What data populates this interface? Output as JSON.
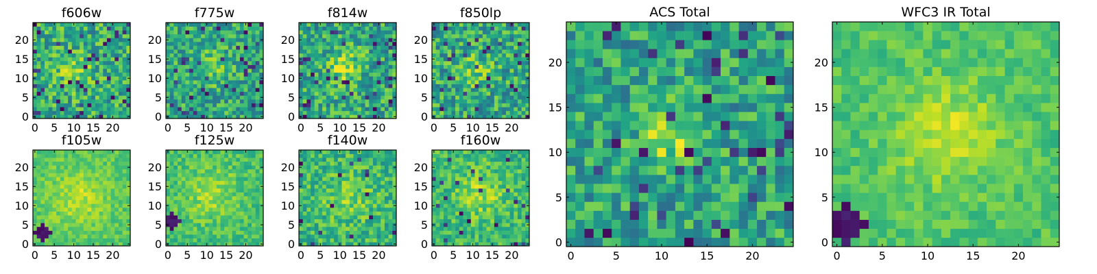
{
  "figure": {
    "colormap": "viridis",
    "grid_size": 25
  },
  "chart_data": [
    {
      "type": "heatmap",
      "title": "f606w",
      "xticks": [
        "0",
        "5",
        "10",
        "15",
        "20"
      ],
      "yticks": [
        "0",
        "5",
        "10",
        "15",
        "20"
      ],
      "xlim": [
        -0.5,
        24.5
      ],
      "ylim": [
        -0.5,
        24.5
      ],
      "seed": 11,
      "base": 0.62,
      "noise": 0.24,
      "blob": {
        "x": 10,
        "y": 12,
        "amp": 0.18,
        "sigma": 3
      },
      "dark_fraction": 0.07
    },
    {
      "type": "heatmap",
      "title": "f775w",
      "xticks": [
        "0",
        "5",
        "10",
        "15",
        "20"
      ],
      "yticks": [
        "0",
        "5",
        "10",
        "15",
        "20"
      ],
      "xlim": [
        -0.5,
        24.5
      ],
      "ylim": [
        -0.5,
        24.5
      ],
      "seed": 23,
      "base": 0.6,
      "noise": 0.22,
      "blob": {
        "x": 11,
        "y": 13,
        "amp": 0.2,
        "sigma": 3
      },
      "dark_fraction": 0.06
    },
    {
      "type": "heatmap",
      "title": "f814w",
      "xticks": [
        "0",
        "5",
        "10",
        "15",
        "20"
      ],
      "yticks": [
        "0",
        "5",
        "10",
        "15",
        "20"
      ],
      "xlim": [
        -0.5,
        24.5
      ],
      "ylim": [
        -0.5,
        24.5
      ],
      "seed": 37,
      "base": 0.6,
      "noise": 0.24,
      "blob": {
        "x": 11,
        "y": 13,
        "amp": 0.25,
        "sigma": 3
      },
      "dark_fraction": 0.06
    },
    {
      "type": "heatmap",
      "title": "f850lp",
      "xticks": [
        "0",
        "5",
        "10",
        "15",
        "20"
      ],
      "yticks": [
        "0",
        "5",
        "10",
        "15",
        "20"
      ],
      "xlim": [
        -0.5,
        24.5
      ],
      "ylim": [
        -0.5,
        24.5
      ],
      "seed": 41,
      "base": 0.6,
      "noise": 0.24,
      "blob": {
        "x": 11,
        "y": 12,
        "amp": 0.18,
        "sigma": 3
      },
      "dark_fraction": 0.07
    },
    {
      "type": "heatmap",
      "title": "f105w",
      "xticks": [
        "0",
        "5",
        "10",
        "15",
        "20"
      ],
      "yticks": [
        "0",
        "5",
        "10",
        "15",
        "20"
      ],
      "xlim": [
        -0.5,
        24.5
      ],
      "ylim": [
        -0.5,
        24.5
      ],
      "seed": 53,
      "base": 0.74,
      "noise": 0.1,
      "blob": {
        "x": 11,
        "y": 12,
        "amp": 0.16,
        "sigma": 5
      },
      "dark_fraction": 0.0,
      "dark_corner": {
        "x": 2,
        "y": 3,
        "r": 2
      }
    },
    {
      "type": "heatmap",
      "title": "f125w",
      "xticks": [
        "0",
        "5",
        "10",
        "15",
        "20"
      ],
      "yticks": [
        "0",
        "5",
        "10",
        "15",
        "20"
      ],
      "xlim": [
        -0.5,
        24.5
      ],
      "ylim": [
        -0.5,
        24.5
      ],
      "seed": 67,
      "base": 0.7,
      "noise": 0.12,
      "blob": {
        "x": 11,
        "y": 13,
        "amp": 0.16,
        "sigma": 5
      },
      "dark_fraction": 0.0,
      "dark_corner": {
        "x": 1,
        "y": 6,
        "r": 2
      }
    },
    {
      "type": "heatmap",
      "title": "f140w",
      "xticks": [
        "0",
        "5",
        "10",
        "15",
        "20"
      ],
      "yticks": [
        "0",
        "5",
        "10",
        "15",
        "20"
      ],
      "xlim": [
        -0.5,
        24.5
      ],
      "ylim": [
        -0.5,
        24.5
      ],
      "seed": 79,
      "base": 0.66,
      "noise": 0.18,
      "blob": {
        "x": 12,
        "y": 12,
        "amp": 0.16,
        "sigma": 4
      },
      "dark_fraction": 0.03
    },
    {
      "type": "heatmap",
      "title": "f160w",
      "xticks": [
        "0",
        "5",
        "10",
        "15",
        "20"
      ],
      "yticks": [
        "0",
        "5",
        "10",
        "15",
        "20"
      ],
      "xlim": [
        -0.5,
        24.5
      ],
      "ylim": [
        -0.5,
        24.5
      ],
      "seed": 83,
      "base": 0.68,
      "noise": 0.16,
      "blob": {
        "x": 12,
        "y": 13,
        "amp": 0.18,
        "sigma": 4
      },
      "dark_fraction": 0.04
    },
    {
      "type": "heatmap",
      "title": "ACS Total",
      "xticks": [
        "0",
        "5",
        "10",
        "15",
        "20"
      ],
      "yticks": [
        "0",
        "5",
        "10",
        "15",
        "20"
      ],
      "xlim": [
        -0.5,
        24.5
      ],
      "ylim": [
        -0.5,
        24.5
      ],
      "seed": 97,
      "base": 0.58,
      "noise": 0.22,
      "blob": {
        "x": 11,
        "y": 12,
        "amp": 0.3,
        "sigma": 2.5
      },
      "dark_fraction": 0.06
    },
    {
      "type": "heatmap",
      "title": "WFC3 IR Total",
      "xticks": [
        "0",
        "5",
        "10",
        "15",
        "20"
      ],
      "yticks": [
        "0",
        "5",
        "10",
        "15",
        "20"
      ],
      "xlim": [
        -0.5,
        24.5
      ],
      "ylim": [
        -0.5,
        24.5
      ],
      "seed": 101,
      "base": 0.72,
      "noise": 0.1,
      "blob": {
        "x": 12,
        "y": 12,
        "amp": 0.2,
        "sigma": 4
      },
      "dark_fraction": 0.0,
      "dark_corner": {
        "x": 1,
        "y": 2,
        "r": 2
      }
    }
  ]
}
